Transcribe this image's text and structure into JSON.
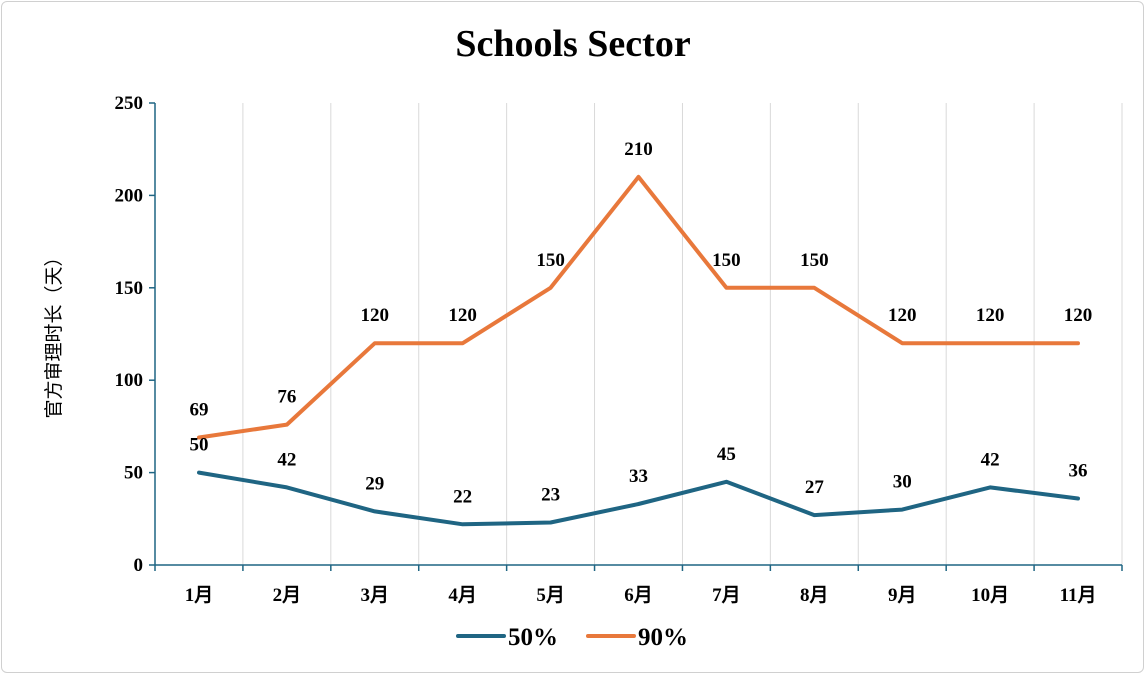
{
  "chart_data": {
    "type": "line",
    "title": "Schools Sector",
    "xlabel": "",
    "ylabel": "官方审理时长（天）",
    "categories": [
      "1月",
      "2月",
      "3月",
      "4月",
      "5月",
      "6月",
      "7月",
      "8月",
      "9月",
      "10月",
      "11月"
    ],
    "ylim": [
      0,
      250
    ],
    "yticks": [
      "0",
      "50",
      "100",
      "150",
      "200",
      "250"
    ],
    "grid": true,
    "legend_position": "bottom",
    "series": [
      {
        "name": "50%",
        "color": "#1f6583",
        "values": [
          50,
          42,
          29,
          22,
          23,
          33,
          45,
          27,
          30,
          42,
          36
        ]
      },
      {
        "name": "90%",
        "color": "#e8783b",
        "values": [
          69,
          76,
          120,
          120,
          150,
          210,
          150,
          150,
          120,
          120,
          120
        ]
      }
    ]
  }
}
